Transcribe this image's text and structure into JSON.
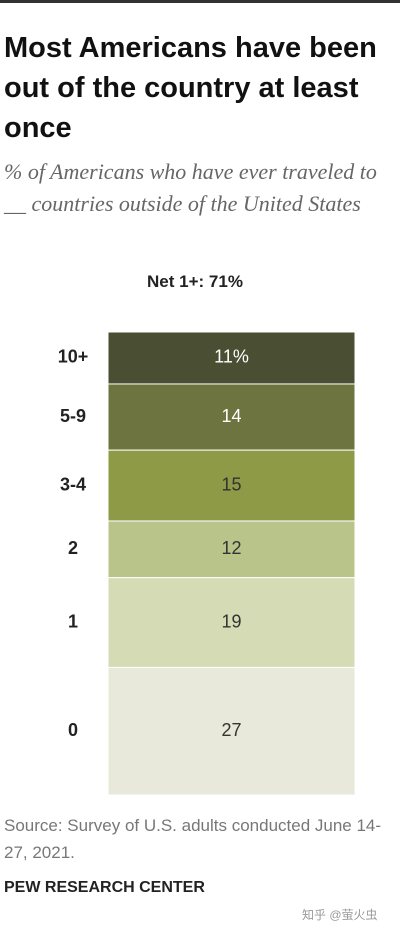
{
  "chart_data": {
    "type": "stacked-column",
    "title": "Most Americans have been out of the country at least once",
    "subtitle": "% of Americans who have ever traveled to __ countries outside of the United States",
    "annotation": "Net 1+: 71%",
    "categories": [
      "10+",
      "5-9",
      "3-4",
      "2",
      "1",
      "0"
    ],
    "values": [
      11,
      14,
      15,
      12,
      19,
      27
    ],
    "value_labels": [
      "11%",
      "14",
      "15",
      "12",
      "19",
      "27"
    ],
    "colors": [
      "#4a4e33",
      "#6e7440",
      "#8e9a45",
      "#b9c48a",
      "#d5dbb5",
      "#e8e9db"
    ],
    "source": "Source: Survey of U.S. adults conducted June 14-27, 2021.",
    "credit": "PEW RESEARCH CENTER",
    "watermark": "知乎 @萤火虫"
  }
}
